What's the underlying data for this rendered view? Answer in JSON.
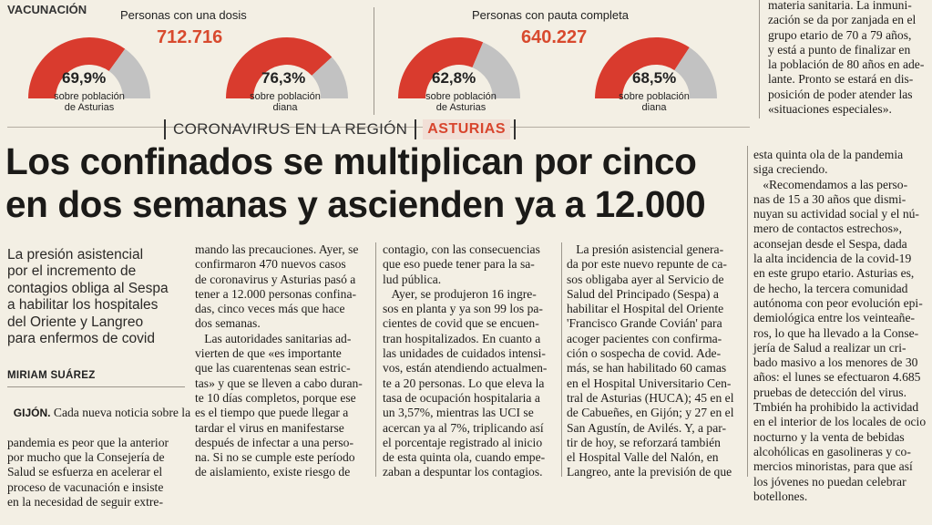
{
  "infographic": {
    "section_label": "VACUNACIÓN",
    "group1": {
      "title": "Personas con una dosis",
      "total": "712.716"
    },
    "group2": {
      "title": "Personas con pauta completa",
      "total": "640.227"
    },
    "gauges": [
      {
        "percent_text": "69,9%",
        "value": 69.9,
        "caption1": "sobre población",
        "caption2": "de Asturias"
      },
      {
        "percent_text": "76,3%",
        "value": 76.3,
        "caption1": "sobre población",
        "caption2": "diana"
      },
      {
        "percent_text": "62,8%",
        "value": 62.8,
        "caption1": "sobre población",
        "caption2": "de Asturias"
      },
      {
        "percent_text": "68,5%",
        "value": 68.5,
        "caption1": "sobre población",
        "caption2": "diana"
      }
    ],
    "colors": {
      "filled": "#d93b2e",
      "remaining": "#c2c2c2"
    }
  },
  "top_right": {
    "lines": [
      "materia sanitaria. La inmuni-",
      "zación se da por zanjada en el",
      "grupo etario de 70 a 79 años,",
      "y está a punto de finalizar en",
      "la población de 80 años en ade-",
      "lante. Pronto se estará en dis-",
      "posición de poder atender las",
      "«situaciones especiales»."
    ]
  },
  "kicker": {
    "section": "CORONAVIRUS EN LA REGIÓN",
    "region": "ASTURIAS"
  },
  "headline": {
    "line1": "Los confinados se multiplican por cinco",
    "line2": "en dos semanas y ascienden ya a 12.000"
  },
  "subhead": {
    "lines": [
      "La presión asistencial",
      "por el incremento de",
      "contagios obliga al Sespa",
      "a habilitar los hospitales",
      "del Oriente y Langreo",
      "para enfermos de covid"
    ]
  },
  "byline": "MIRIAM SUÁREZ",
  "dateline": "GIJÓN.",
  "col1": [
    " Cada nueva noticia sobre la",
    "pandemia es peor que la anterior",
    "por mucho que la Consejería de",
    "Salud se esfuerza en acelerar el",
    "proceso de vacunación e insiste",
    "en la necesidad de seguir extre-"
  ],
  "col2": [
    "mando las precauciones. Ayer, se",
    "confirmaron 470 nuevos casos",
    "de coronavirus y Asturias pasó a",
    "tener a 12.000 personas confina-",
    "das, cinco veces más que hace",
    "dos semanas.",
    "   Las autoridades sanitarias ad-",
    "vierten de que «es importante",
    "que las cuarentenas sean estric-",
    "tas» y que se lleven a cabo duran-",
    "te 10 días completos, porque ese",
    "es el tiempo que puede llegar a",
    "tardar el virus en manifestarse",
    "después de infectar a una perso-",
    "na. Si no se cumple este período",
    "de aislamiento, existe riesgo de"
  ],
  "col3": [
    "contagio, con las consecuencias",
    "que eso puede tener para la sa-",
    "lud pública.",
    "   Ayer, se produjeron 16 ingre-",
    "sos en planta y ya son 99 los pa-",
    "cientes de covid que se encuen-",
    "tran hospitalizados. En cuanto a",
    "las unidades de cuidados intensi-",
    "vos, están atendiendo actualmen-",
    "te a 20 personas. Lo que eleva la",
    "tasa de ocupación hospitalaria a",
    "un 3,57%, mientras las UCI se",
    "acercan ya al 7%, triplicando así",
    "el porcentaje registrado al inicio",
    "de esta quinta ola, cuando empe-",
    "zaban a despuntar los contagios."
  ],
  "col4": [
    "   La presión asistencial genera-",
    "da por este nuevo repunte de ca-",
    "sos obligaba ayer al Servicio de",
    "Salud del Principado (Sespa) a",
    "habilitar el Hospital del Oriente",
    "'Francisco Grande Covián' para",
    "acoger pacientes con confirma-",
    "ción o sospecha de covid. Ade-",
    "más, se han habilitado 60 camas",
    "en el Hospital Universitario Cen-",
    "tral de Asturias (HUCA); 45 en el",
    "de Cabueñes, en Gijón; y 27 en el",
    "San Agustín, de Avilés. Y, a par-",
    "tir de hoy, se reforzará también",
    "el Hospital Valle del Nalón, en",
    "Langreo, ante la previsión de que"
  ],
  "col5": [
    "esta quinta ola de la pandemia",
    "siga creciendo.",
    "   «Recomendamos a las perso-",
    "nas de 15 a 30 años que dismi-",
    "nuyan su actividad social y el nú-",
    "mero de contactos estrechos»,",
    "aconsejan desde el Sespa, dada",
    "la alta incidencia de la covid-19",
    "en este grupo etario. Asturias es,",
    "de hecho, la tercera comunidad",
    "autónoma con peor evolución epi-",
    "demiológica entre los veinteañe-",
    "ros, lo que ha llevado a la Conse-",
    "jería de Salud a realizar un cri-",
    "bado masivo a los menores de 30",
    "años: el lunes se efectuaron 4.685",
    "pruebas de detección del virus.",
    "Tmbién ha prohibido la actividad",
    "en el interior de los locales de ocio",
    "nocturno y la venta de bebidas",
    "alcohólicas en gasolineras y co-",
    "mercios minoristas, para que así",
    "los jóvenes no puedan celebrar",
    "botellones."
  ]
}
